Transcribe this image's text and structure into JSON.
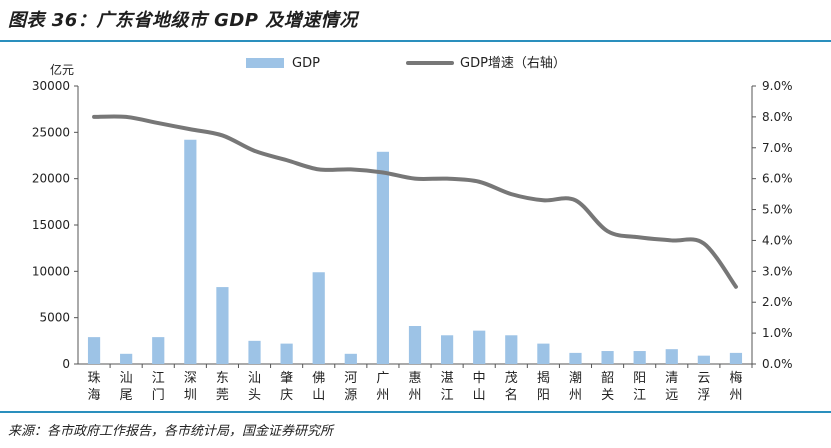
{
  "header": {
    "title": "图表 36：广东省地级市 GDP 及增速情况"
  },
  "footer": {
    "source": "来源：各市政府工作报告，各市统计局，国金证券研究所"
  },
  "colors": {
    "bar": "#9dc3e6",
    "line": "#777777",
    "rule": "#2a8fbd"
  },
  "chart_data": {
    "type": "bar",
    "unit_left": "亿元",
    "categories": [
      "珠海",
      "汕尾",
      "江门",
      "深圳",
      "东莞",
      "汕头",
      "肇庆",
      "佛山",
      "河源",
      "广州",
      "惠州",
      "湛江",
      "中山",
      "茂名",
      "揭阳",
      "潮州",
      "韶关",
      "阳江",
      "清远",
      "云浮",
      "梅州"
    ],
    "series": [
      {
        "name": "GDP",
        "type": "bar",
        "axis": "left",
        "values": [
          2900,
          1100,
          2900,
          24200,
          8300,
          2500,
          2200,
          9900,
          1100,
          22900,
          4100,
          3100,
          3600,
          3100,
          2200,
          1200,
          1400,
          1400,
          1600,
          900,
          1200
        ]
      },
      {
        "name": "GDP增速（右轴）",
        "type": "line",
        "axis": "right",
        "values": [
          8.0,
          8.0,
          7.8,
          7.6,
          7.4,
          6.9,
          6.6,
          6.3,
          6.3,
          6.2,
          6.0,
          6.0,
          5.9,
          5.5,
          5.3,
          5.3,
          4.3,
          4.1,
          4.0,
          3.9,
          2.5
        ]
      }
    ],
    "ylim_left": [
      0,
      30000
    ],
    "yticks_left": [
      "0",
      "5000",
      "10000",
      "15000",
      "20000",
      "25000",
      "30000"
    ],
    "ylim_right": [
      0,
      9
    ],
    "yticks_right": [
      "0.0%",
      "1.0%",
      "2.0%",
      "3.0%",
      "4.0%",
      "5.0%",
      "6.0%",
      "7.0%",
      "8.0%",
      "9.0%"
    ],
    "legend_position": "top",
    "grid": false
  }
}
